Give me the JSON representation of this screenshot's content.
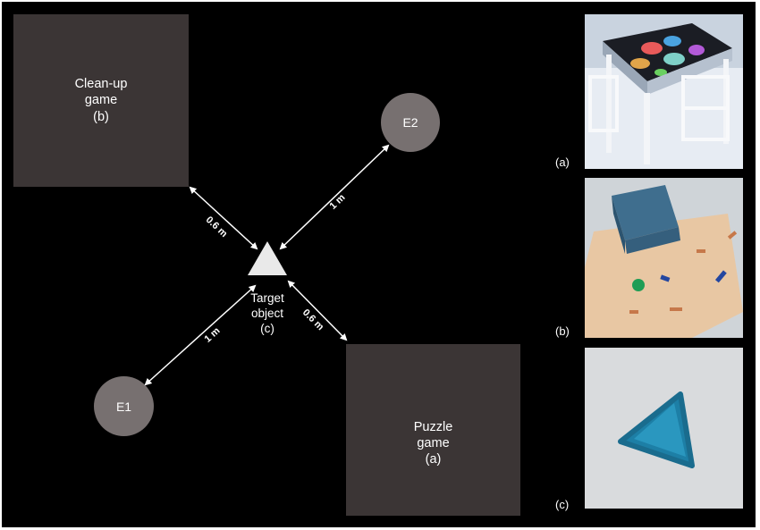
{
  "areas": {
    "cleanup": {
      "lines": [
        "Clean-up",
        "game",
        "(b)"
      ]
    },
    "puzzle": {
      "lines": [
        "Puzzle",
        "game",
        "(a)"
      ]
    }
  },
  "participants": {
    "e1": "E1",
    "e2": "E2"
  },
  "target": {
    "lines": [
      "Target",
      "object",
      "(c)"
    ]
  },
  "distances": {
    "to_cleanup": "0.6 m",
    "to_e2": "1 m",
    "to_e1": "1 m",
    "to_puzzle": "0.6 m"
  },
  "photos": [
    {
      "caption": "(a)",
      "icon": "table-with-puzzle-photo"
    },
    {
      "caption": "(b)",
      "icon": "box-and-toys-on-mat-photo"
    },
    {
      "caption": "(c)",
      "icon": "blue-triangle-object-photo"
    }
  ],
  "colors": {
    "background": "#000000",
    "area_fill": "#3b3535",
    "circle_fill": "#777070",
    "text": "#ffffff"
  }
}
